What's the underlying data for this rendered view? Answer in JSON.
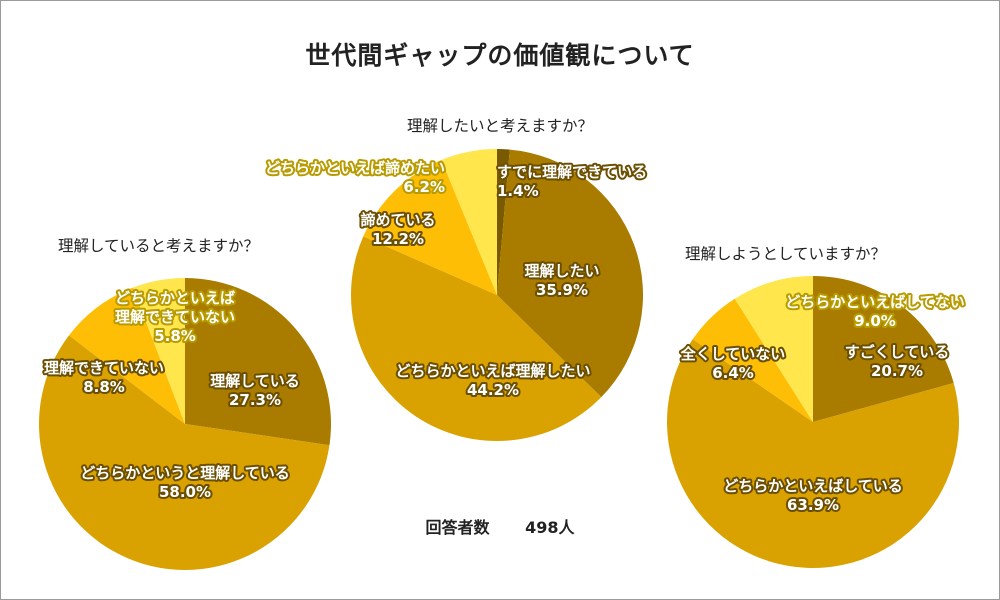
{
  "title": "世代間ギャップの価値観について",
  "respondents": {
    "label": "回答者数",
    "count": "498人"
  },
  "colors": {
    "shade1": "#A97C00",
    "shade2": "#D9A200",
    "shade3": "#FEBE05",
    "shade4": "#FEE64C",
    "label_light": "#FFFFFF",
    "label_dark": "#8A6A00"
  },
  "chart_data": [
    {
      "type": "pie",
      "title": "理解していると考えますか？",
      "slices": [
        {
          "label": "理解している",
          "value": 27.3,
          "display": "27.3%",
          "color": "#A97C00"
        },
        {
          "label": "どちらかというと理解している",
          "value": 58.0,
          "display": "58.0%",
          "color": "#D9A200"
        },
        {
          "label": "理解できていない",
          "value": 8.8,
          "display": "8.8%",
          "color": "#FEBE05"
        },
        {
          "label": "どちらかといえば理解できていない",
          "value": 5.8,
          "display": "5.8%",
          "color": "#FEE64C"
        }
      ]
    },
    {
      "type": "pie",
      "title": "理解したいと考えますか？",
      "slices": [
        {
          "label": "すでに理解できている",
          "value": 1.4,
          "display": "1.4%",
          "color": "#7A5A00"
        },
        {
          "label": "理解したい",
          "value": 35.9,
          "display": "35.9%",
          "color": "#A97C00"
        },
        {
          "label": "どちらかといえば理解したい",
          "value": 44.2,
          "display": "44.2%",
          "color": "#D9A200"
        },
        {
          "label": "諦めている",
          "value": 12.2,
          "display": "12.2%",
          "color": "#FEBE05"
        },
        {
          "label": "どちらかといえば諦めたい",
          "value": 6.2,
          "display": "6.2%",
          "color": "#FEE64C"
        }
      ]
    },
    {
      "type": "pie",
      "title": "理解しようとしていますか？",
      "slices": [
        {
          "label": "すごくしている",
          "value": 20.7,
          "display": "20.7%",
          "color": "#A97C00"
        },
        {
          "label": "どちらかといえばしている",
          "value": 63.9,
          "display": "63.9%",
          "color": "#D9A200"
        },
        {
          "label": "全くしていない",
          "value": 6.4,
          "display": "6.4%",
          "color": "#FEBE05"
        },
        {
          "label": "どちらかといえばしてない",
          "value": 9.0,
          "display": "9.0%",
          "color": "#FEE64C"
        }
      ]
    }
  ]
}
